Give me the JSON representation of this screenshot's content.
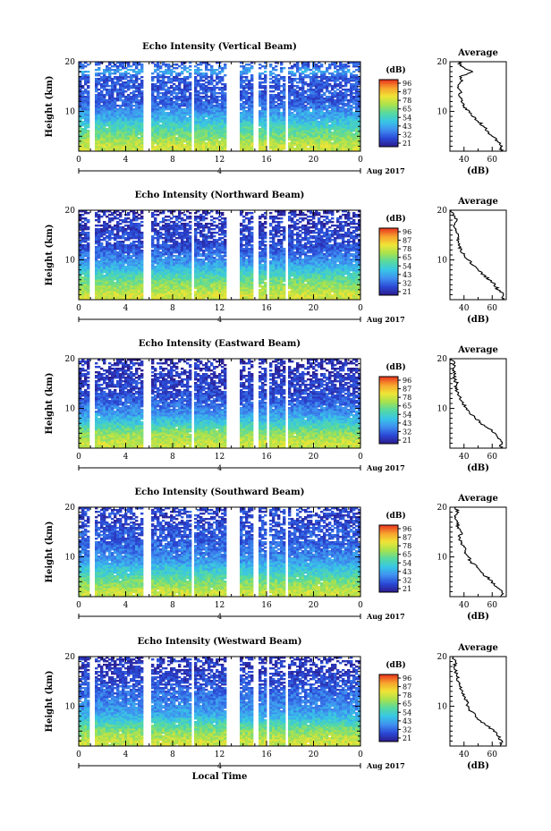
{
  "figure": {
    "shared_xlabel": "Local Time",
    "date_label": "Aug 2017",
    "colorbar_unit": "(dB)",
    "colorbar_ticks": [
      "96",
      "87",
      "78",
      "65",
      "54",
      "43",
      "32",
      "21"
    ],
    "average_title": "Average",
    "average_xlabel": "(dB)",
    "height_label": "Height (km)",
    "time_ticks": [
      "0",
      "4",
      "8",
      "12",
      "16",
      "20",
      "0"
    ],
    "day_label": "4",
    "height_ticks": [
      "20",
      "10"
    ],
    "average_x_ticks": [
      "40",
      "60"
    ]
  },
  "colors": {
    "colormap": [
      "#2c1b8c",
      "#2a49d6",
      "#3f8ff0",
      "#38c6e6",
      "#56d9a0",
      "#a8e24e",
      "#f0e436",
      "#f7a22e",
      "#e8321e"
    ],
    "axis": "#000000"
  },
  "chart_data": [
    {
      "type": "heatmap",
      "title": "Echo Intensity (Vertical Beam)",
      "xlabel": "",
      "ylabel": "Height (km)",
      "x_ticks": [
        "0",
        "4",
        "8",
        "12",
        "16",
        "20",
        "0"
      ],
      "y_range": [
        2,
        20
      ],
      "color_range": [
        21,
        96
      ],
      "color_unit": "dB",
      "data_gaps_hours": [
        [
          1.0,
          1.3
        ],
        [
          5.6,
          6.2
        ],
        [
          9.5,
          9.9
        ],
        [
          12.5,
          13.6
        ],
        [
          14.8,
          15.2
        ],
        [
          16.0,
          16.3
        ],
        [
          17.6,
          17.9
        ]
      ],
      "average_profile": {
        "title": "Average",
        "xlabel": "(dB)",
        "xlim": [
          30,
          70
        ],
        "height_km": [
          2,
          3,
          4,
          5,
          6,
          7,
          8,
          9,
          10,
          11,
          12,
          13,
          14,
          15,
          16,
          17,
          18,
          19,
          20
        ],
        "db": [
          66,
          67,
          64,
          60,
          57,
          54,
          50,
          46,
          44,
          40,
          38,
          37,
          38,
          36,
          38,
          37,
          46,
          39,
          36
        ]
      }
    },
    {
      "type": "heatmap",
      "title": "Echo Intensity (Northward Beam)",
      "xlabel": "",
      "ylabel": "Height (km)",
      "x_ticks": [
        "0",
        "4",
        "8",
        "12",
        "16",
        "20",
        "0"
      ],
      "y_range": [
        2,
        20
      ],
      "color_range": [
        21,
        96
      ],
      "color_unit": "dB",
      "data_gaps_hours": [
        [
          1.0,
          1.3
        ],
        [
          5.6,
          6.2
        ],
        [
          9.5,
          9.9
        ],
        [
          12.5,
          13.6
        ],
        [
          14.8,
          15.2
        ],
        [
          16.0,
          16.3
        ],
        [
          17.6,
          17.9
        ]
      ],
      "average_profile": {
        "title": "Average",
        "xlabel": "(dB)",
        "xlim": [
          30,
          70
        ],
        "height_km": [
          2,
          3,
          4,
          5,
          6,
          7,
          8,
          9,
          10,
          11,
          12,
          13,
          14,
          15,
          16,
          17,
          18,
          19,
          20
        ],
        "db": [
          67,
          68,
          64,
          62,
          58,
          54,
          50,
          46,
          43,
          40,
          38,
          36,
          35,
          36,
          34,
          33,
          35,
          32,
          31
        ]
      }
    },
    {
      "type": "heatmap",
      "title": "Echo Intensity (Eastward Beam)",
      "xlabel": "",
      "ylabel": "Height (km)",
      "x_ticks": [
        "0",
        "4",
        "8",
        "12",
        "16",
        "20",
        "0"
      ],
      "y_range": [
        2,
        20
      ],
      "color_range": [
        21,
        96
      ],
      "color_unit": "dB",
      "data_gaps_hours": [
        [
          1.0,
          1.3
        ],
        [
          5.6,
          6.2
        ],
        [
          9.5,
          9.9
        ],
        [
          12.5,
          13.6
        ],
        [
          14.8,
          15.2
        ],
        [
          16.0,
          16.3
        ],
        [
          17.6,
          17.9
        ]
      ],
      "average_profile": {
        "title": "Average",
        "xlabel": "(dB)",
        "xlim": [
          30,
          70
        ],
        "height_km": [
          2,
          3,
          4,
          5,
          6,
          7,
          8,
          9,
          10,
          11,
          12,
          13,
          14,
          15,
          16,
          17,
          18,
          19,
          20
        ],
        "db": [
          66,
          67,
          64,
          62,
          57,
          52,
          48,
          44,
          42,
          39,
          37,
          36,
          34,
          35,
          33,
          34,
          32,
          33,
          31
        ]
      }
    },
    {
      "type": "heatmap",
      "title": "Echo Intensity (Southward Beam)",
      "xlabel": "",
      "ylabel": "Height (km)",
      "x_ticks": [
        "0",
        "4",
        "8",
        "12",
        "16",
        "20",
        "0"
      ],
      "y_range": [
        2,
        20
      ],
      "color_range": [
        21,
        96
      ],
      "color_unit": "dB",
      "data_gaps_hours": [
        [
          1.0,
          1.3
        ],
        [
          5.6,
          6.2
        ],
        [
          9.5,
          9.9
        ],
        [
          12.5,
          13.6
        ],
        [
          14.8,
          15.2
        ],
        [
          16.0,
          16.3
        ],
        [
          17.6,
          17.9
        ]
      ],
      "average_profile": {
        "title": "Average",
        "xlabel": "(dB)",
        "xlim": [
          30,
          70
        ],
        "height_km": [
          2,
          3,
          4,
          5,
          6,
          7,
          8,
          9,
          10,
          11,
          12,
          13,
          14,
          15,
          16,
          17,
          18,
          19,
          20
        ],
        "db": [
          66,
          67,
          63,
          60,
          56,
          52,
          49,
          45,
          43,
          41,
          40,
          38,
          37,
          38,
          36,
          35,
          34,
          36,
          34
        ]
      }
    },
    {
      "type": "heatmap",
      "title": "Echo Intensity (Westward Beam)",
      "xlabel": "Local Time",
      "ylabel": "Height (km)",
      "x_ticks": [
        "0",
        "4",
        "8",
        "12",
        "16",
        "20",
        "0"
      ],
      "y_range": [
        2,
        20
      ],
      "color_range": [
        21,
        96
      ],
      "color_unit": "dB",
      "data_gaps_hours": [
        [
          1.0,
          1.3
        ],
        [
          5.6,
          6.2
        ],
        [
          9.5,
          9.9
        ],
        [
          12.5,
          13.6
        ],
        [
          14.8,
          15.2
        ],
        [
          16.0,
          16.3
        ],
        [
          17.6,
          17.9
        ]
      ],
      "average_profile": {
        "title": "Average",
        "xlabel": "(dB)",
        "xlim": [
          30,
          70
        ],
        "height_km": [
          2,
          3,
          4,
          5,
          6,
          7,
          8,
          9,
          10,
          11,
          12,
          13,
          14,
          15,
          16,
          17,
          18,
          19,
          20
        ],
        "db": [
          66,
          67,
          64,
          61,
          57,
          52,
          48,
          45,
          43,
          42,
          40,
          39,
          37,
          36,
          35,
          34,
          33,
          34,
          32
        ]
      }
    }
  ]
}
